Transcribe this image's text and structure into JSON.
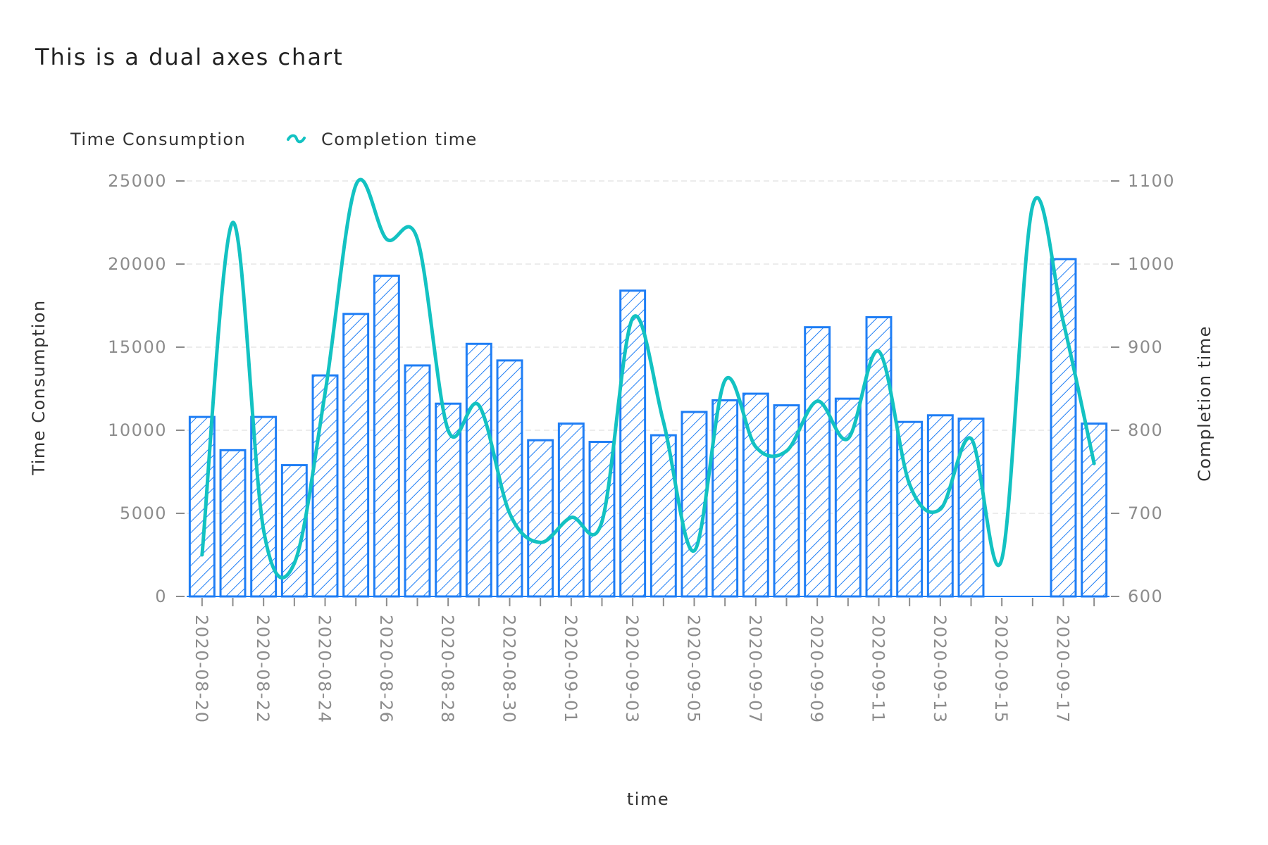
{
  "chart_data": {
    "type": "bar",
    "title": "This is a dual axes chart",
    "xlabel": "time",
    "ylabel": "Time Consumption",
    "y2label": "Completion time",
    "ylim": [
      0,
      25000
    ],
    "y2lim": [
      600,
      1100
    ],
    "yticks": [
      "0",
      "5000",
      "10000",
      "15000",
      "20000",
      "25000"
    ],
    "y2ticks": [
      "600",
      "700",
      "800",
      "900",
      "1000",
      "1100"
    ],
    "grid": true,
    "legend_position": "top-left",
    "x": [
      "2020-08-20",
      "2020-08-21",
      "2020-08-22",
      "2020-08-23",
      "2020-08-24",
      "2020-08-25",
      "2020-08-26",
      "2020-08-27",
      "2020-08-28",
      "2020-08-29",
      "2020-08-30",
      "2020-08-31",
      "2020-09-01",
      "2020-09-02",
      "2020-09-03",
      "2020-09-04",
      "2020-09-05",
      "2020-09-06",
      "2020-09-07",
      "2020-09-08",
      "2020-09-09",
      "2020-09-10",
      "2020-09-11",
      "2020-09-12",
      "2020-09-13",
      "2020-09-14",
      "2020-09-15",
      "2020-09-16",
      "2020-09-17",
      "2020-09-18"
    ],
    "xtick_labels": [
      "2020-08-20",
      "2020-08-22",
      "2020-08-24",
      "2020-08-26",
      "2020-08-28",
      "2020-08-30",
      "2020-09-01",
      "2020-09-03",
      "2020-09-05",
      "2020-09-07",
      "2020-09-09",
      "2020-09-11",
      "2020-09-13",
      "2020-09-15",
      "2020-09-17"
    ],
    "series": [
      {
        "name": "Time Consumption",
        "kind": "bar",
        "axis": "left",
        "color": "#1f7ef5",
        "values": [
          10800,
          8800,
          10800,
          7900,
          13300,
          17000,
          19300,
          13900,
          11600,
          15200,
          14200,
          9400,
          10400,
          9300,
          18400,
          9700,
          11100,
          11800,
          12200,
          11500,
          16200,
          11900,
          16800,
          10500,
          10900,
          10700,
          0,
          0,
          20300,
          10400
        ]
      },
      {
        "name": "Completion time",
        "kind": "line",
        "axis": "right",
        "color": "#13c2c2",
        "values": [
          650,
          1050,
          680,
          640,
          845,
          1095,
          1030,
          1030,
          800,
          830,
          700,
          665,
          695,
          690,
          935,
          810,
          655,
          860,
          780,
          775,
          835,
          790,
          895,
          735,
          705,
          790,
          645,
          1070,
          930,
          760
        ]
      }
    ]
  }
}
